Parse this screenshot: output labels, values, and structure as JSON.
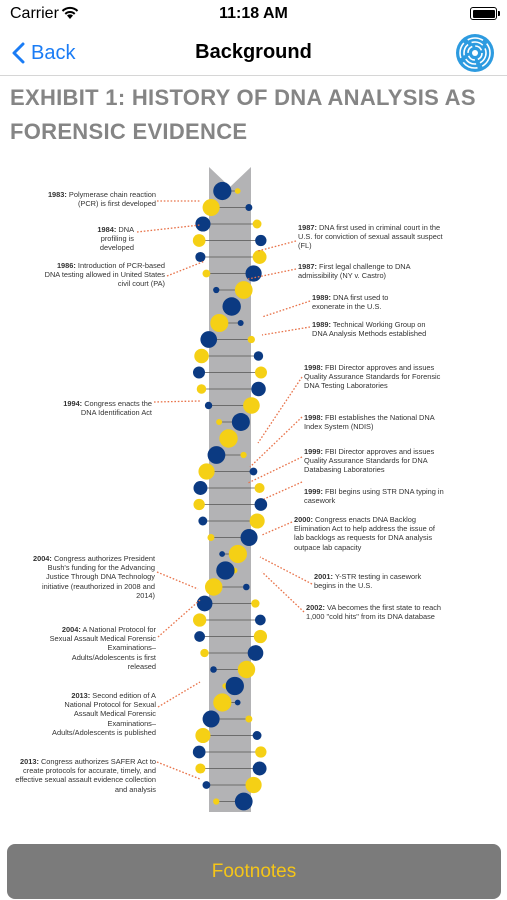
{
  "status_bar": {
    "carrier": "Carrier",
    "time": "11:18 AM"
  },
  "nav": {
    "back_label": "Back",
    "title": "Background"
  },
  "exhibit": {
    "title": "EXHIBIT 1: HISTORY OF DNA ANALYSIS AS FORENSIC EVIDENCE",
    "colors": {
      "blue": "#0b3a82",
      "yellow": "#f5d015",
      "spine": "#b3b3b5",
      "connector": "#e8734a"
    },
    "left_entries": [
      {
        "year": "1983:",
        "text": "Polymerase chain reaction (PCR) is first developed"
      },
      {
        "year": "1984:",
        "text": "DNA profiling is developed"
      },
      {
        "year": "1986:",
        "text": "Introduction of PCR-based DNA testing allowed in United States civil court (PA)"
      },
      {
        "year": "1994:",
        "text": "Congress enacts the DNA Identification Act"
      },
      {
        "year": "2004:",
        "text": "Congress authorizes President Bush's funding for the Advancing Justice Through DNA Technology initiative (reauthorized in 2008 and 2014)"
      },
      {
        "year": "2004:",
        "text": "A National Protocol for Sexual Assault Medical Forensic Examinations–Adults/Adolescents is first released"
      },
      {
        "year": "2013:",
        "text": "Second edition of A National Protocol for Sexual Assault Medical Forensic Examinations–Adults/Adolescents is published"
      },
      {
        "year": "2013:",
        "text": "Congress authorizes SAFER Act to create protocols for accurate, timely, and effective sexual assault evidence collection and analysis"
      }
    ],
    "right_entries": [
      {
        "year": "1987:",
        "text": "DNA first used in criminal court in the U.S. for conviction of sexual assault suspect (FL)"
      },
      {
        "year": "1987:",
        "text": "First legal challenge to DNA admissibility (NY v. Castro)"
      },
      {
        "year": "1989:",
        "text": "DNA first used to exonerate in the U.S."
      },
      {
        "year": "1989:",
        "text": "Technical Working Group on DNA Analysis Methods established"
      },
      {
        "year": "1998:",
        "text": "FBI Director approves and issues Quality Assurance Standards for Forensic DNA Testing Laboratories"
      },
      {
        "year": "1998:",
        "text": "FBI establishes the National DNA Index System (NDIS)"
      },
      {
        "year": "1999:",
        "text": "FBI Director approves and issues Quality Assurance Standards for DNA Databasing Laboratories"
      },
      {
        "year": "1999:",
        "text": "FBI begins using STR DNA typing in casework"
      },
      {
        "year": "2000:",
        "text": "Congress enacts DNA Backlog Elimination Act to help address the issue of lab backlogs as requests for DNA analysis outpace lab capacity"
      },
      {
        "year": "2001:",
        "text": "Y-STR testing in casework begins in the U.S."
      },
      {
        "year": "2002:",
        "text": "VA becomes the first state to reach 1,000 \"cold hits\" from its DNA database"
      }
    ]
  },
  "footer": {
    "button_label": "Footnotes"
  }
}
